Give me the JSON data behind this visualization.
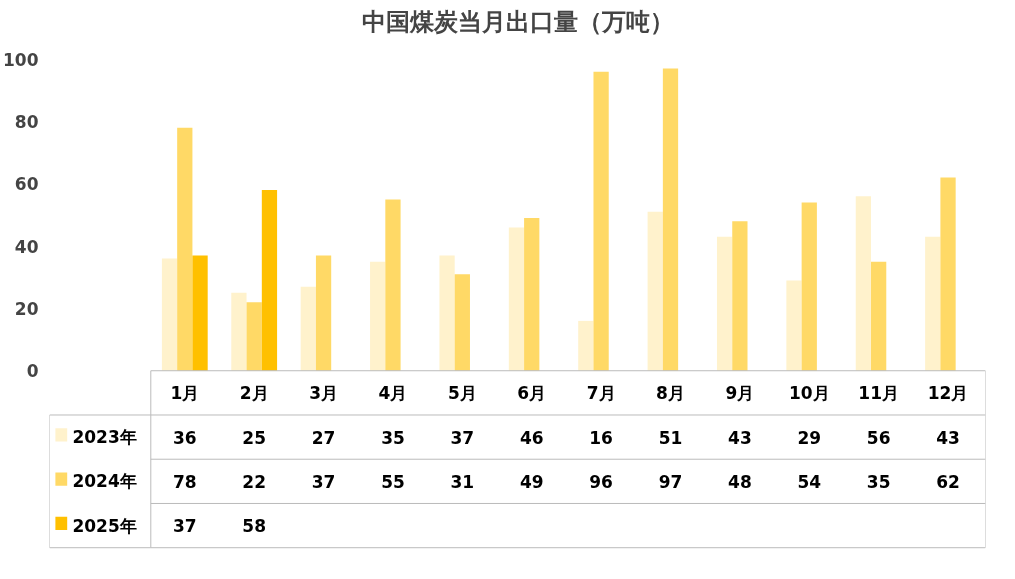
{
  "chart_data": {
    "type": "bar",
    "title": "中国煤炭当月出口量（万吨）",
    "categories": [
      "1月",
      "2月",
      "3月",
      "4月",
      "5月",
      "6月",
      "7月",
      "8月",
      "9月",
      "10月",
      "11月",
      "12月"
    ],
    "series": [
      {
        "name": "2023年",
        "color": "#fff2cc",
        "values": [
          36,
          25,
          27,
          35,
          37,
          46,
          16,
          51,
          43,
          29,
          56,
          43
        ]
      },
      {
        "name": "2024年",
        "color": "#ffd966",
        "values": [
          78,
          22,
          37,
          55,
          31,
          49,
          96,
          97,
          48,
          54,
          35,
          62
        ]
      },
      {
        "name": "2025年",
        "color": "#ffc000",
        "values": [
          37,
          58,
          null,
          null,
          null,
          null,
          null,
          null,
          null,
          null,
          null,
          null
        ]
      }
    ],
    "ylim": [
      0,
      100
    ],
    "yticks": [
      0,
      20,
      40,
      60,
      80,
      100
    ],
    "data_labels": true,
    "legend": "bottom left"
  }
}
